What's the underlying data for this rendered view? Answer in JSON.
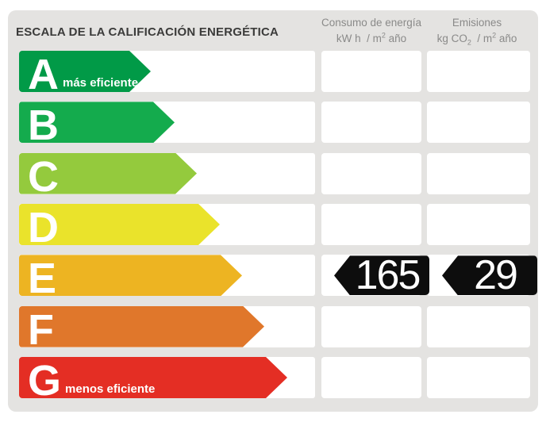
{
  "title": "ESCALA DE LA CALIFICACIÓN ENERGÉTICA",
  "columns": {
    "consumo": {
      "label": "Consumo de energía",
      "unit": {
        "p1": "kW h  / m",
        "sup1": "2",
        "p2": " año"
      }
    },
    "emisiones": {
      "label": "Emisiones",
      "unit": {
        "p1": "kg CO",
        "sub1": "2",
        "p2": "  / m",
        "sup2": "2",
        "p3": " año"
      }
    }
  },
  "scale": {
    "rows": [
      {
        "letter": "A",
        "note": "más eficiente",
        "color": "#019a47",
        "arrow_width": 166
      },
      {
        "letter": "B",
        "note": "",
        "color": "#14ab4d",
        "arrow_width": 196
      },
      {
        "letter": "C",
        "note": "",
        "color": "#94ca3d",
        "arrow_width": 224
      },
      {
        "letter": "D",
        "note": "",
        "color": "#eae32b",
        "arrow_width": 253
      },
      {
        "letter": "E",
        "note": "",
        "color": "#edb422",
        "arrow_width": 281
      },
      {
        "letter": "F",
        "note": "",
        "color": "#e0772b",
        "arrow_width": 309
      },
      {
        "letter": "G",
        "note": "menos eficiente",
        "color": "#e42e24",
        "arrow_width": 338
      }
    ]
  },
  "rating": {
    "letter": "E",
    "consumption_value": "165",
    "emissions_value": "29",
    "badge_color": "#0d0d0d"
  },
  "chart_data": {
    "type": "bar",
    "title": "ESCALA DE LA CALIFICACIÓN ENERGÉTICA",
    "categories": [
      "A",
      "B",
      "C",
      "D",
      "E",
      "F",
      "G"
    ],
    "values": [
      166,
      196,
      224,
      253,
      281,
      309,
      338
    ],
    "bar_colors": [
      "#019a47",
      "#14ab4d",
      "#94ca3d",
      "#eae32b",
      "#edb422",
      "#e0772b",
      "#e42e24"
    ],
    "xlabel": "",
    "ylabel": "",
    "legend_position": "none",
    "grid": false,
    "annotations": {
      "rating_letter": "E",
      "consumo_kwh_m2_ano": 165,
      "emisiones_kgco2_m2_ano": 29,
      "best_label": "más eficiente",
      "worst_label": "menos eficiente"
    },
    "columns": [
      "Consumo de energía kW h / m² año",
      "Emisiones kg CO₂ / m² año"
    ]
  }
}
